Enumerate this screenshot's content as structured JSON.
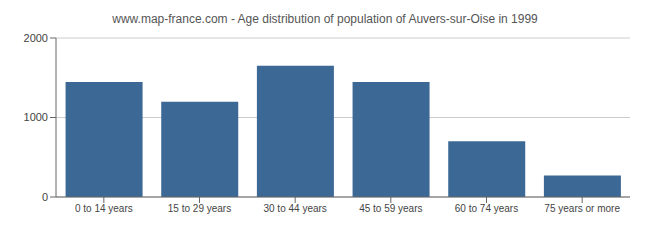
{
  "chart_data": {
    "type": "bar",
    "title": "www.map-france.com - Age distribution of population of Auvers-sur-Oise in 1999",
    "categories": [
      "0 to 14 years",
      "15 to 29 years",
      "30 to 44 years",
      "45 to 59 years",
      "60 to 74 years",
      "75 years or more"
    ],
    "values": [
      1448,
      1197,
      1650,
      1448,
      700,
      272
    ],
    "color": "#3b6895",
    "ylim": [
      0,
      2000
    ],
    "yticks": [
      0,
      1000,
      2000
    ],
    "grid": true
  }
}
